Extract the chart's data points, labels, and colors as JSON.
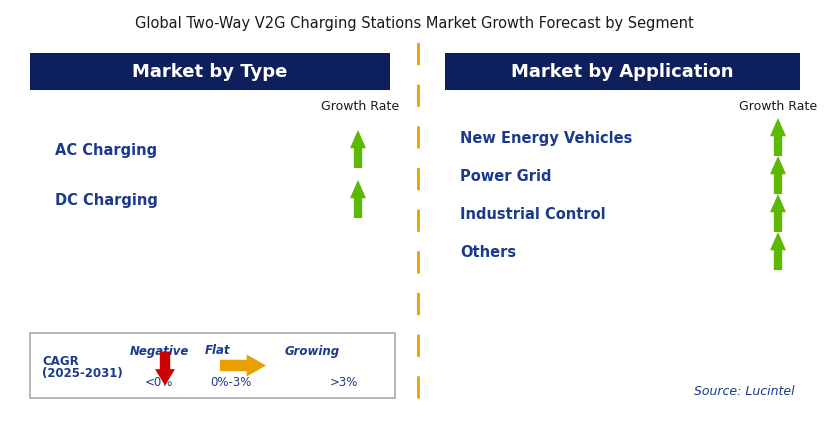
{
  "title": "Global Two-Way V2G Charging Stations Market Growth Forecast by Segment",
  "title_fontsize": 10.5,
  "title_color": "#1a1a1a",
  "bg_color": "#ffffff",
  "left_header": "Market by Type",
  "right_header": "Market by Application",
  "header_bg": "#0d1f5c",
  "header_text_color": "#ffffff",
  "header_fontsize": 13,
  "growth_rate_label": "Growth Rate",
  "growth_rate_color": "#1a1a1a",
  "left_items": [
    "AC Charging",
    "DC Charging"
  ],
  "right_items": [
    "New Energy Vehicles",
    "Power Grid",
    "Industrial Control",
    "Others"
  ],
  "item_color": "#1b3a8c",
  "item_fontsize": 10.5,
  "arrow_up_color": "#5cb800",
  "arrow_down_color": "#cc0000",
  "arrow_flat_color": "#e8a000",
  "dashed_line_color": "#e8a000",
  "legend_box_color": "#ffffff",
  "legend_border_color": "#aaaaaa",
  "legend_items": [
    {
      "label": "Negative",
      "sublabel": "<0%",
      "arrow": "down",
      "color": "#cc0000"
    },
    {
      "label": "Flat",
      "sublabel": "0%-3%",
      "arrow": "right",
      "color": "#e8a000"
    },
    {
      "label": "Growing",
      "sublabel": ">3%",
      "arrow": "up",
      "color": "#5cb800"
    }
  ],
  "cagr_label": "CAGR\n(2025-2031)",
  "source_text": "Source: Lucintel",
  "source_color": "#1b3a8c",
  "source_fontsize": 9
}
